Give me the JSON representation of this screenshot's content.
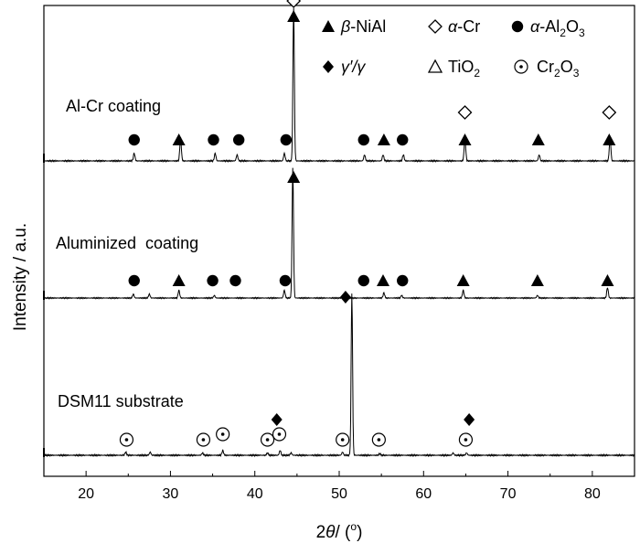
{
  "chart_data": {
    "type": "line",
    "title": "",
    "xlabel_html": {
      "pre": "2",
      "theta": "θ",
      "post": "/ (",
      "sup": "o",
      "close": ")"
    },
    "ylabel": "Intensity / a.u.",
    "xlim": [
      15,
      85
    ],
    "xticks": [
      20,
      30,
      40,
      50,
      60,
      70,
      80
    ],
    "grid": false,
    "legend_placement": "top-right",
    "legend": [
      {
        "symbol": "filled-triangle",
        "label_html": [
          "β",
          "-NiAl"
        ]
      },
      {
        "symbol": "open-diamond",
        "label_html": [
          "α",
          "-Cr"
        ]
      },
      {
        "symbol": "filled-circle",
        "label_html": [
          "α",
          "-Al",
          "2",
          "O",
          "3"
        ]
      },
      {
        "symbol": "filled-diamond",
        "label_html": [
          "γ′/γ"
        ]
      },
      {
        "symbol": "open-triangle",
        "label_html": [
          "TiO",
          "2"
        ]
      },
      {
        "symbol": "dotted-circle",
        "label_html": [
          "Cr",
          "2",
          "O",
          "3"
        ]
      }
    ],
    "series": [
      {
        "name": "Al-Cr coating",
        "peaks": [
          {
            "x": 25.7,
            "h": 0.05
          },
          {
            "x": 31.2,
            "h": 0.15
          },
          {
            "x": 35.3,
            "h": 0.05
          },
          {
            "x": 37.9,
            "h": 0.04
          },
          {
            "x": 43.5,
            "h": 0.05
          },
          {
            "x": 44.6,
            "h": 1.0
          },
          {
            "x": 53.0,
            "h": 0.04
          },
          {
            "x": 55.2,
            "h": 0.04
          },
          {
            "x": 57.6,
            "h": 0.04
          },
          {
            "x": 64.9,
            "h": 0.15
          },
          {
            "x": 73.7,
            "h": 0.04
          },
          {
            "x": 82.1,
            "h": 0.15
          }
        ],
        "markers": [
          {
            "x": 25.7,
            "symbol": "filled-circle"
          },
          {
            "x": 31.0,
            "symbol": "filled-triangle"
          },
          {
            "x": 35.1,
            "symbol": "filled-circle"
          },
          {
            "x": 38.1,
            "symbol": "filled-circle"
          },
          {
            "x": 43.7,
            "symbol": "filled-circle"
          },
          {
            "x": 44.6,
            "symbol": "filled-triangle"
          },
          {
            "x": 44.6,
            "symbol": "open-diamond"
          },
          {
            "x": 52.9,
            "symbol": "filled-circle"
          },
          {
            "x": 55.3,
            "symbol": "filled-triangle"
          },
          {
            "x": 57.5,
            "symbol": "filled-circle"
          },
          {
            "x": 64.9,
            "symbol": "filled-triangle"
          },
          {
            "x": 64.9,
            "symbol": "open-diamond"
          },
          {
            "x": 73.6,
            "symbol": "filled-triangle"
          },
          {
            "x": 82.0,
            "symbol": "filled-triangle"
          },
          {
            "x": 82.0,
            "symbol": "open-diamond"
          }
        ]
      },
      {
        "name": "Aluminized  coating",
        "peaks": [
          {
            "x": 25.6,
            "h": 0.03
          },
          {
            "x": 27.5,
            "h": 0.03
          },
          {
            "x": 31.0,
            "h": 0.06
          },
          {
            "x": 35.2,
            "h": 0.02
          },
          {
            "x": 43.5,
            "h": 0.06
          },
          {
            "x": 44.5,
            "h": 1.0
          },
          {
            "x": 55.3,
            "h": 0.04
          },
          {
            "x": 57.4,
            "h": 0.02
          },
          {
            "x": 64.7,
            "h": 0.06
          },
          {
            "x": 73.5,
            "h": 0.02
          },
          {
            "x": 81.8,
            "h": 0.08
          }
        ],
        "markers": [
          {
            "x": 25.7,
            "symbol": "filled-circle"
          },
          {
            "x": 31.0,
            "symbol": "filled-triangle"
          },
          {
            "x": 35.0,
            "symbol": "filled-circle"
          },
          {
            "x": 37.7,
            "symbol": "filled-circle"
          },
          {
            "x": 43.6,
            "symbol": "filled-circle"
          },
          {
            "x": 44.6,
            "symbol": "filled-triangle"
          },
          {
            "x": 52.9,
            "symbol": "filled-circle"
          },
          {
            "x": 55.2,
            "symbol": "filled-triangle"
          },
          {
            "x": 57.5,
            "symbol": "filled-circle"
          },
          {
            "x": 64.7,
            "symbol": "filled-triangle"
          },
          {
            "x": 73.5,
            "symbol": "filled-triangle"
          },
          {
            "x": 81.8,
            "symbol": "filled-triangle"
          }
        ]
      },
      {
        "name": "DSM11 substrate",
        "peaks": [
          {
            "x": 24.7,
            "h": 0.02
          },
          {
            "x": 27.6,
            "h": 0.02
          },
          {
            "x": 33.8,
            "h": 0.015
          },
          {
            "x": 36.2,
            "h": 0.03
          },
          {
            "x": 41.5,
            "h": 0.015
          },
          {
            "x": 43.0,
            "h": 0.03
          },
          {
            "x": 44.3,
            "h": 0.015
          },
          {
            "x": 50.4,
            "h": 0.02
          },
          {
            "x": 51.5,
            "h": 1.0
          },
          {
            "x": 54.8,
            "h": 0.01
          },
          {
            "x": 63.5,
            "h": 0.015
          },
          {
            "x": 65.1,
            "h": 0.015
          }
        ],
        "markers": [
          {
            "x": 24.8,
            "symbol": "dotted-circle"
          },
          {
            "x": 33.9,
            "symbol": "dotted-circle"
          },
          {
            "x": 36.2,
            "symbol": "dotted-circle"
          },
          {
            "x": 42.6,
            "symbol": "filled-diamond"
          },
          {
            "x": 41.5,
            "symbol": "dotted-circle"
          },
          {
            "x": 42.9,
            "symbol": "dotted-circle"
          },
          {
            "x": 50.4,
            "symbol": "dotted-circle"
          },
          {
            "x": 51.4,
            "symbol": "filled-diamond"
          },
          {
            "x": 54.7,
            "symbol": "dotted-circle"
          },
          {
            "x": 65.4,
            "symbol": "filled-diamond"
          },
          {
            "x": 65.0,
            "symbol": "dotted-circle"
          }
        ]
      }
    ]
  }
}
